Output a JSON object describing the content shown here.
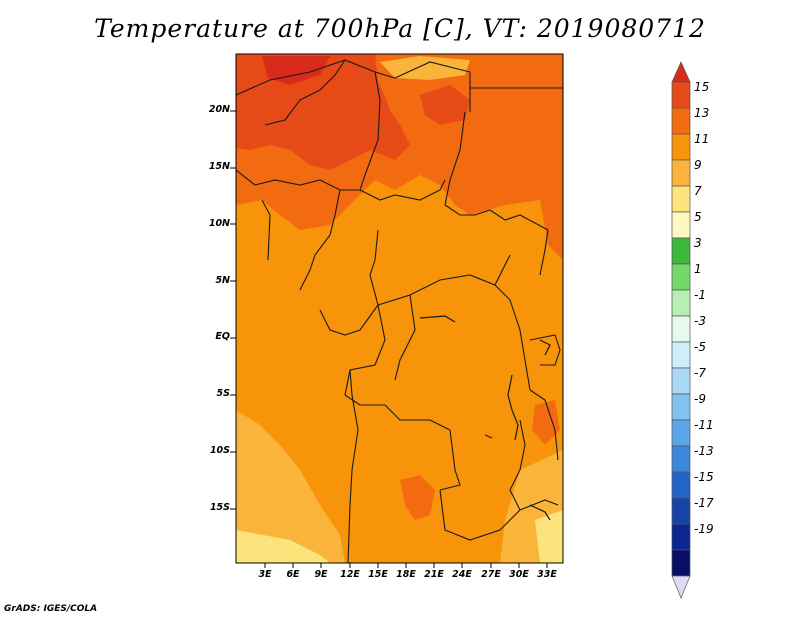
{
  "title": "Temperature at 700hPa [C], VT: 2019080712",
  "credit": "GrADS: IGES/COLA",
  "map": {
    "variable": "Temperature",
    "level": "700hPa",
    "units": "C",
    "valid_time": "2019080712",
    "lat_labels": [
      "20N",
      "15N",
      "10N",
      "5N",
      "EQ",
      "5S",
      "10S",
      "15S"
    ],
    "lon_labels": [
      "3E",
      "6E",
      "9E",
      "12E",
      "15E",
      "18E",
      "21E",
      "24E",
      "27E",
      "30E",
      "33E"
    ]
  },
  "colorbar": {
    "labels": [
      "15",
      "13",
      "11",
      "9",
      "7",
      "5",
      "3",
      "1",
      "-1",
      "-3",
      "-5",
      "-7",
      "-9",
      "-11",
      "-13",
      "-15",
      "-17",
      "-19"
    ],
    "colors": [
      "#d92b1c",
      "#e64a16",
      "#f26b10",
      "#f7940a",
      "#fbb43a",
      "#fde37c",
      "#fff8c0",
      "#3cb83c",
      "#73d96b",
      "#b8efb0",
      "#e6f9ea",
      "#cdeefa",
      "#a9d9f5",
      "#82c2f0",
      "#5aa6e8",
      "#3a87dc",
      "#2464c8",
      "#1643a8",
      "#0b2690",
      "#060e66",
      "#dcdcf4"
    ]
  }
}
